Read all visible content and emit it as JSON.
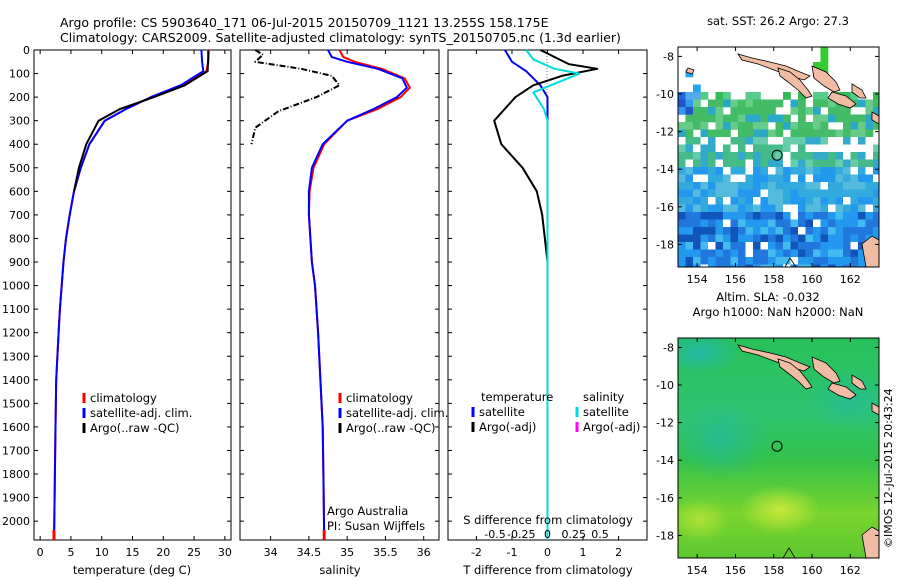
{
  "header": {
    "line1": "Argo profile: CS 5903640_171 06-Jul-2015 20150709_1121 13.255S 158.175E",
    "line2": "Climatology: CARS2009. Satellite-adjusted climatology: synTS_20150705.nc (1.3d earlier)"
  },
  "depth_axis": {
    "ticks": [
      "0",
      "100",
      "200",
      "300",
      "400",
      "500",
      "600",
      "700",
      "800",
      "900",
      "1000",
      "1100",
      "1200",
      "1300",
      "1400",
      "1500",
      "1600",
      "1700",
      "1800",
      "1900",
      "2000"
    ],
    "range": [
      0,
      2080
    ]
  },
  "chart_data": [
    {
      "type": "line",
      "id": "temperature",
      "xlabel": "temperature (deg C)",
      "xlim": [
        -1,
        31
      ],
      "xticks": [
        "0",
        "5",
        "10",
        "15",
        "20",
        "25",
        "30"
      ],
      "ylim": [
        0,
        2080
      ],
      "legend": {
        "position": "lower-middle",
        "entries": [
          {
            "label": "climatology",
            "color": "#ff0000"
          },
          {
            "label": "satellite-adj. clim.",
            "color": "#0000ff"
          },
          {
            "label": "Argo(..raw -QC)",
            "color": "#000000"
          }
        ]
      },
      "series": [
        {
          "name": "climatology",
          "color": "#ff0000",
          "x": [
            27.4,
            27.3,
            27.0,
            23.0,
            18.0,
            14.0,
            10.5,
            8.0,
            6.6,
            5.5,
            4.8,
            4.2,
            3.8,
            3.5,
            3.2,
            3.0,
            2.8,
            2.6,
            2.5,
            2.4,
            2.3,
            2.25
          ],
          "y": [
            0,
            50,
            90,
            150,
            200,
            250,
            300,
            400,
            500,
            600,
            700,
            800,
            900,
            1000,
            1100,
            1200,
            1300,
            1400,
            1600,
            1800,
            2000,
            2080
          ]
        },
        {
          "name": "satellite-adj. clim.",
          "color": "#0000ff",
          "x": [
            26.2,
            26.3,
            26.5,
            22.8,
            18.0,
            14.0,
            10.5,
            8.0,
            6.6,
            5.5,
            4.8,
            4.2,
            3.8,
            3.5,
            3.2,
            3.0,
            2.8,
            2.6,
            2.5,
            2.4,
            2.3,
            2.25
          ],
          "y": [
            0,
            50,
            90,
            150,
            200,
            250,
            300,
            400,
            500,
            600,
            700,
            800,
            900,
            1000,
            1100,
            1200,
            1300,
            1400,
            1600,
            1800,
            2000,
            2080
          ]
        },
        {
          "name": "Argo(..raw -QC)",
          "color": "#000000",
          "x": [
            27.3,
            27.3,
            27.2,
            23.5,
            18.5,
            13.0,
            9.5,
            7.5,
            6.3,
            5.5
          ],
          "y": [
            4,
            40,
            90,
            150,
            200,
            250,
            300,
            400,
            500,
            600
          ]
        }
      ]
    },
    {
      "type": "line",
      "id": "salinity",
      "xlabel": "salinity",
      "xlim": [
        33.6,
        36.2
      ],
      "xticks": [
        "34",
        "34.5",
        "35",
        "35.5",
        "36"
      ],
      "ylim": [
        0,
        2080
      ],
      "legend": {
        "position": "lower-right",
        "entries": [
          {
            "label": "climatology",
            "color": "#ff0000"
          },
          {
            "label": "satellite-adj. clim.",
            "color": "#0000ff"
          },
          {
            "label": "Argo(..raw -QC)",
            "color": "#000000"
          }
        ]
      },
      "annotation": [
        "Argo Australia",
        "PI: Susan Wijffels"
      ],
      "series": [
        {
          "name": "climatology",
          "color": "#ff0000",
          "x": [
            34.9,
            34.95,
            35.1,
            35.45,
            35.75,
            35.82,
            35.7,
            35.4,
            35.0,
            34.7,
            34.56,
            34.51,
            34.5,
            34.52,
            34.54,
            34.58,
            34.62,
            34.65,
            34.68,
            34.69,
            34.7
          ],
          "y": [
            0,
            30,
            50,
            80,
            120,
            160,
            200,
            250,
            300,
            400,
            500,
            600,
            700,
            800,
            900,
            1000,
            1200,
            1400,
            1600,
            1800,
            2080
          ]
        },
        {
          "name": "satellite-adj. clim.",
          "color": "#0000ff",
          "x": [
            34.75,
            34.8,
            35.0,
            35.4,
            35.72,
            35.78,
            35.65,
            35.35,
            35.0,
            34.68,
            34.54,
            34.5,
            34.5,
            34.52,
            34.54,
            34.58,
            34.62,
            34.65,
            34.68,
            34.69,
            34.7
          ],
          "y": [
            0,
            30,
            50,
            80,
            120,
            160,
            200,
            250,
            300,
            400,
            500,
            600,
            700,
            800,
            900,
            1000,
            1200,
            1400,
            1600,
            1800,
            2080
          ]
        },
        {
          "name": "Argo(..raw -QC)",
          "color": "#000000",
          "x": [
            33.8,
            33.9,
            33.8,
            34.4,
            34.8,
            34.9,
            34.6,
            34.1,
            33.8,
            33.75
          ],
          "y": [
            0,
            20,
            50,
            80,
            110,
            150,
            200,
            260,
            330,
            400
          ]
        }
      ]
    },
    {
      "type": "line",
      "id": "difference",
      "xlabel": "T difference from climatology",
      "xlabel_top": "S difference from climatology",
      "xlim": [
        -2.8,
        2.8
      ],
      "xticks": [
        "-2",
        "-1",
        "0",
        "1",
        "2"
      ],
      "xticks_top": [
        "-0.5",
        "-0.25",
        "0",
        "0.25",
        "0.5"
      ],
      "ylim": [
        0,
        2080
      ],
      "legend": {
        "columns": [
          {
            "title": "temperature",
            "entries": [
              {
                "label": "satellite",
                "color": "#0000ff"
              },
              {
                "label": "Argo(-adj)",
                "color": "#000000"
              }
            ]
          },
          {
            "title": "salinity",
            "entries": [
              {
                "label": "satellite",
                "color": "#00dddd"
              },
              {
                "label": "Argo(-adj)",
                "color": "#ff00ff"
              }
            ]
          }
        ]
      },
      "series": [
        {
          "name": "temperature satellite",
          "color": "#0000ff",
          "x": [
            -1.2,
            -1.0,
            -0.6,
            -0.2,
            0.0,
            0.0,
            0.0
          ],
          "y": [
            0,
            50,
            90,
            150,
            200,
            300,
            2080
          ]
        },
        {
          "name": "temperature Argo(-adj)",
          "color": "#000000",
          "x": [
            -0.2,
            0.6,
            1.4,
            0.4,
            -0.4,
            -0.9,
            -1.5,
            -1.3,
            -0.7,
            -0.3,
            -0.15,
            0.0
          ],
          "y": [
            0,
            60,
            80,
            110,
            150,
            200,
            300,
            400,
            500,
            600,
            700,
            900
          ]
        },
        {
          "name": "salinity satellite",
          "color": "#00dddd",
          "x": [
            -0.6,
            -0.4,
            0.2,
            0.9,
            -0.4,
            -0.1,
            0.0,
            0.0
          ],
          "y": [
            0,
            40,
            80,
            100,
            180,
            250,
            300,
            2080
          ]
        }
      ]
    },
    {
      "type": "heatmap",
      "id": "sst-map",
      "title": "sat. SST: 26.2  Argo: 27.3",
      "xticks": [
        "154",
        "156",
        "158",
        "160",
        "162"
      ],
      "yticks": [
        "-8",
        "-10",
        "-12",
        "-14",
        "-16",
        "-18"
      ],
      "xlim": [
        153,
        163.5
      ],
      "ylim": [
        -19.2,
        -7.5
      ],
      "marker": {
        "lon": 158.175,
        "lat": -13.255
      }
    },
    {
      "type": "heatmap",
      "id": "sla-map",
      "title": "Altim. SLA: -0.032",
      "subtitle": "Argo h1000: NaN h2000: NaN",
      "xticks": [
        "154",
        "156",
        "158",
        "160",
        "162"
      ],
      "yticks": [
        "-8",
        "-10",
        "-12",
        "-14",
        "-16",
        "-18"
      ],
      "xlim": [
        153,
        163.5
      ],
      "ylim": [
        -19.2,
        -7.5
      ],
      "marker": {
        "lon": 158.175,
        "lat": -13.255
      }
    }
  ],
  "footer": {
    "stamp": "©IMOS 12-Jul-2015 20:43:24"
  }
}
